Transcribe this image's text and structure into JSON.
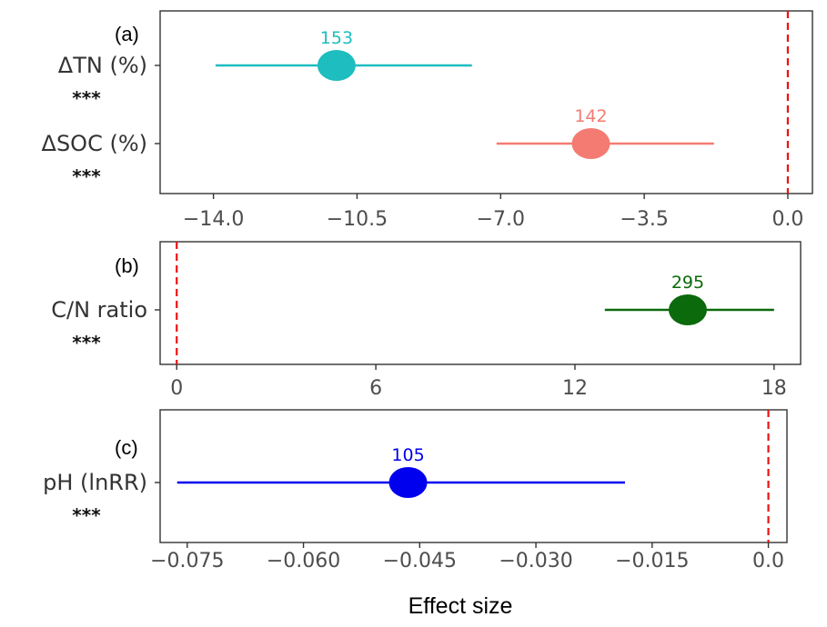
{
  "chart_data": [
    {
      "type": "forest",
      "panel_label": "(a)",
      "x_ticks": [
        "-14.0",
        "-10.5",
        "-7.0",
        "-3.5",
        "0.0"
      ],
      "xlim": [
        -15.3,
        0.6
      ],
      "reference_line": 0.0,
      "rows": [
        {
          "label": "ΔTN (%)",
          "significance": "***",
          "n": "153",
          "effect": -11.0,
          "ci": [
            -13.95,
            -7.7
          ],
          "color": "#1ebdbf"
        },
        {
          "label": "ΔSOC (%)",
          "significance": "***",
          "n": "142",
          "effect": -4.8,
          "ci": [
            -7.1,
            -1.8
          ],
          "color": "#f47b72"
        }
      ]
    },
    {
      "type": "forest",
      "panel_label": "(b)",
      "x_ticks": [
        "0",
        "6",
        "12",
        "18"
      ],
      "xlim": [
        -0.5,
        18.8
      ],
      "reference_line": 0,
      "rows": [
        {
          "label": "C/N ratio",
          "significance": "***",
          "n": "295",
          "effect": 15.4,
          "ci": [
            12.9,
            18.0
          ],
          "color": "#0b6a0b"
        }
      ]
    },
    {
      "type": "forest",
      "panel_label": "(c)",
      "x_ticks": [
        "-0.075",
        "-0.060",
        "-0.045",
        "-0.030",
        "-0.015",
        "0.0"
      ],
      "xlim": [
        -0.0785,
        0.0024
      ],
      "reference_line": 0.0,
      "rows": [
        {
          "label": "pH (lnRR)",
          "significance": "***",
          "n": "105",
          "effect": -0.0465,
          "ci": [
            -0.0763,
            -0.0185
          ],
          "color": "#0000ee"
        }
      ]
    }
  ],
  "xlabel": "Effect size"
}
